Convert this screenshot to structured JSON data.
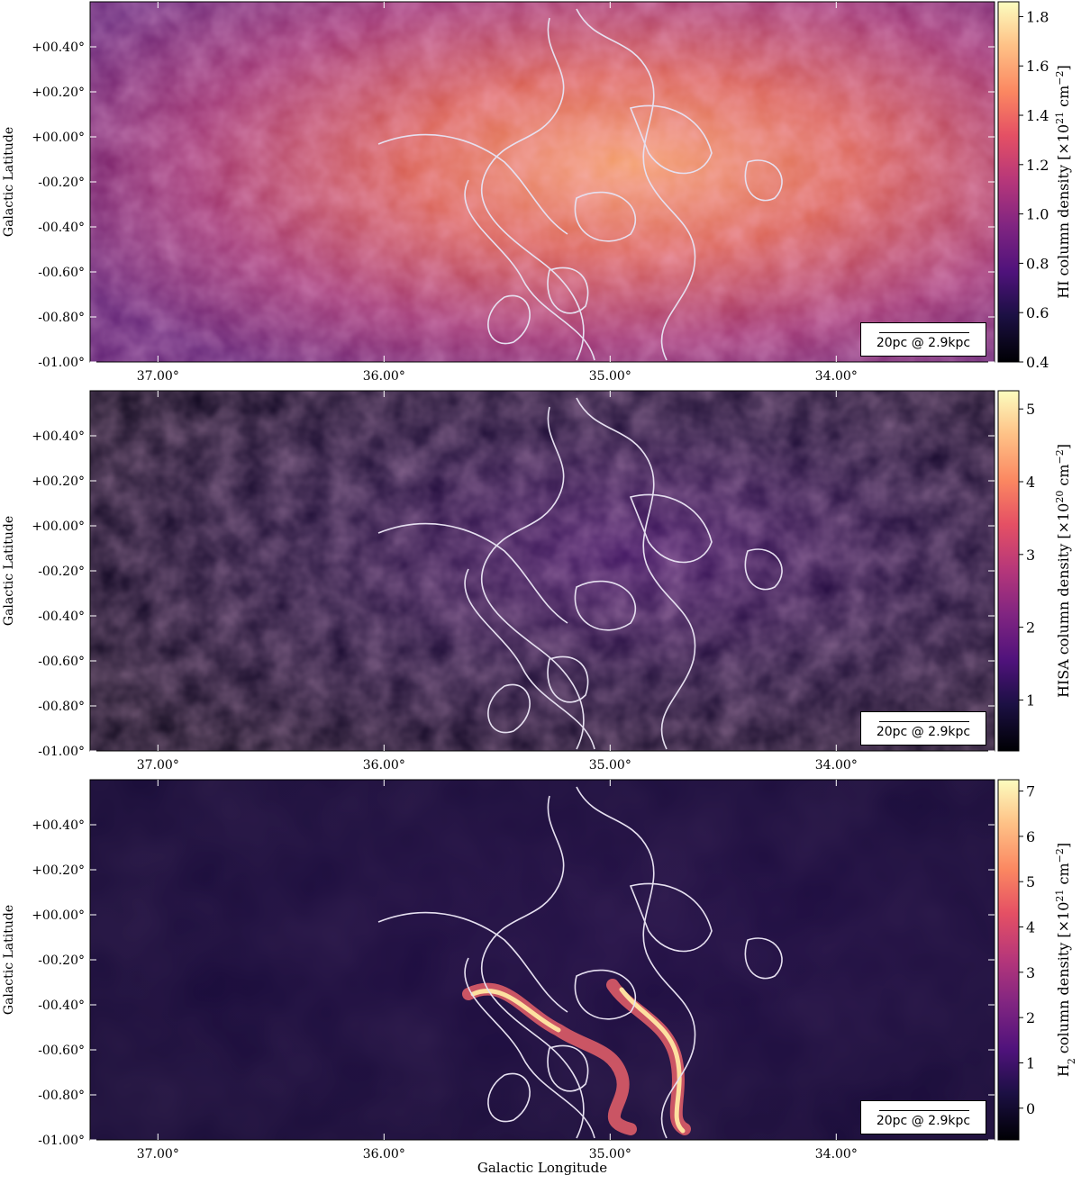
{
  "chart_data": [
    {
      "type": "heatmap",
      "quantity": "HI",
      "colormap": "magma",
      "ylabel": "Galactic Latitude",
      "xticks": [
        "37.00°",
        "36.00°",
        "35.00°",
        "34.00°"
      ],
      "xtick_values": [
        37.0,
        36.0,
        35.0,
        34.0
      ],
      "yticks": [
        "+00.40°",
        "+00.20°",
        "+00.00°",
        "-00.20°",
        "-00.40°",
        "-00.60°",
        "-00.80°",
        "-01.00°"
      ],
      "ytick_values": [
        0.4,
        0.2,
        0.0,
        -0.2,
        -0.4,
        -0.6,
        -0.8,
        -1.0
      ],
      "xlim": [
        37.3,
        33.3
      ],
      "ylim": [
        -1.0,
        0.6
      ],
      "colorbar": {
        "label": "HI column density [×10",
        "label_exp": "21",
        "label_unit": " cm",
        "label_unit_exp": "−2",
        "label_end": "]",
        "ticks": [
          "0.4",
          "0.6",
          "0.8",
          "1.0",
          "1.2",
          "1.4",
          "1.6",
          "1.8"
        ],
        "tick_values": [
          0.4,
          0.6,
          0.8,
          1.0,
          1.2,
          1.4,
          1.6,
          1.8
        ],
        "range": [
          0.4,
          1.86
        ]
      },
      "scalebar": "20pc @ 2.9kpc",
      "contours": true
    },
    {
      "type": "heatmap",
      "quantity": "HISA",
      "colormap": "magma",
      "ylabel": "Galactic Latitude",
      "xticks": [
        "37.00°",
        "36.00°",
        "35.00°",
        "34.00°"
      ],
      "xtick_values": [
        37.0,
        36.0,
        35.0,
        34.0
      ],
      "yticks": [
        "+00.40°",
        "+00.20°",
        "+00.00°",
        "-00.20°",
        "-00.40°",
        "-00.60°",
        "-00.80°",
        "-01.00°"
      ],
      "ytick_values": [
        0.4,
        0.2,
        0.0,
        -0.2,
        -0.4,
        -0.6,
        -0.8,
        -1.0
      ],
      "xlim": [
        37.3,
        33.3
      ],
      "ylim": [
        -1.0,
        0.6
      ],
      "colorbar": {
        "label": "HISA column density [×10",
        "label_exp": "20",
        "label_unit": " cm",
        "label_unit_exp": "−2",
        "label_end": "]",
        "ticks": [
          "1",
          "2",
          "3",
          "4",
          "5"
        ],
        "tick_values": [
          1,
          2,
          3,
          4,
          5
        ],
        "range": [
          0.3,
          5.25
        ]
      },
      "scalebar": "20pc @ 2.9kpc",
      "contours": true
    },
    {
      "type": "heatmap",
      "quantity": "H2",
      "colormap": "magma",
      "ylabel": "Galactic Latitude",
      "xlabel": "Galactic Longitude",
      "xticks": [
        "37.00°",
        "36.00°",
        "35.00°",
        "34.00°"
      ],
      "xtick_values": [
        37.0,
        36.0,
        35.0,
        34.0
      ],
      "yticks": [
        "+00.40°",
        "+00.20°",
        "+00.00°",
        "-00.20°",
        "-00.40°",
        "-00.60°",
        "-00.80°",
        "-01.00°"
      ],
      "ytick_values": [
        0.4,
        0.2,
        0.0,
        -0.2,
        -0.4,
        -0.6,
        -0.8,
        -1.0
      ],
      "xlim": [
        37.3,
        33.3
      ],
      "ylim": [
        -1.0,
        0.6
      ],
      "colorbar": {
        "label": "H",
        "label_sub": "2",
        "label_rest": " column density [×10",
        "label_exp": "21",
        "label_unit": " cm",
        "label_unit_exp": "−2",
        "label_end": "]",
        "ticks": [
          "0",
          "1",
          "2",
          "3",
          "4",
          "5",
          "6",
          "7"
        ],
        "tick_values": [
          0,
          1,
          2,
          3,
          4,
          5,
          6,
          7
        ],
        "range": [
          -0.7,
          7.25
        ]
      },
      "scalebar": "20pc @ 2.9kpc",
      "contours": true
    }
  ]
}
